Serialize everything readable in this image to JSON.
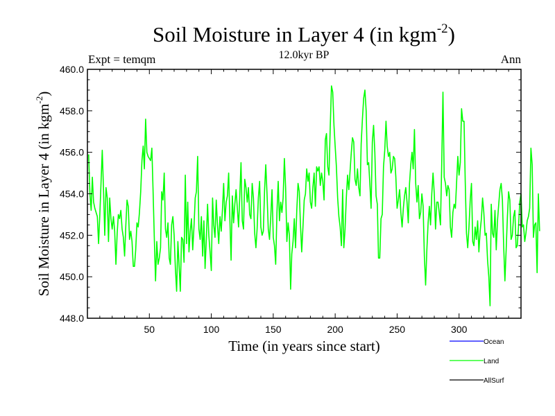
{
  "header": {
    "title_main": "Soil Moisture in Layer 4 (in kgm",
    "title_exponent": "-2",
    "title_close": ")",
    "subtitle": "12.0kyr BP",
    "left_label": "Expt = temqm",
    "right_label": "Ann"
  },
  "chart_data": {
    "type": "line",
    "title": "Soil Moisture in Layer 4 (in kgm-2)",
    "subtitle": "12.0kyr BP",
    "xlabel": "Time (in years since start)",
    "ylabel_main": "Soil Moisture in Layer 4 (in kgm",
    "ylabel_exponent": "-2",
    "ylabel_close": ")",
    "xlim": [
      0,
      350
    ],
    "ylim": [
      448.0,
      460.0
    ],
    "xticks": [
      50,
      100,
      150,
      200,
      250,
      300
    ],
    "xtick_labels": [
      "50",
      "100",
      "150",
      "200",
      "250",
      "300"
    ],
    "yticks": [
      448.0,
      450.0,
      452.0,
      454.0,
      456.0,
      458.0,
      460.0
    ],
    "ytick_labels": [
      "448.0",
      "450.0",
      "452.0",
      "454.0",
      "456.0",
      "458.0",
      "460.0"
    ],
    "legend": [
      {
        "name": "Ocean",
        "color": "#0000ff"
      },
      {
        "name": "Land",
        "color": "#00ff00"
      },
      {
        "name": "AllSurf",
        "color": "#000000"
      }
    ],
    "series": [
      {
        "name": "Land",
        "color": "#00ff00",
        "x_start": 1,
        "x_step": 1,
        "values": [
          455.9,
          454.0,
          453.2,
          454.8,
          453.6,
          453.3,
          453.1,
          452.9,
          451.6,
          453.0,
          454.5,
          456.1,
          454.2,
          452.0,
          454.3,
          453.8,
          451.7,
          453.8,
          452.8,
          452.3,
          452.9,
          452.2,
          450.6,
          452.1,
          453.0,
          452.8,
          453.2,
          452.3,
          451.9,
          451.0,
          452.5,
          453.7,
          453.4,
          451.8,
          452.2,
          451.7,
          450.5,
          450.5,
          451.3,
          452.6,
          452.4,
          453.1,
          454.1,
          455.6,
          456.3,
          455.2,
          457.6,
          456.0,
          455.8,
          455.7,
          455.6,
          456.2,
          454.2,
          451.9,
          449.8,
          451.7,
          450.6,
          450.9,
          451.4,
          454.1,
          453.7,
          455.0,
          452.3,
          451.9,
          452.6,
          450.9,
          450.6,
          452.5,
          452.9,
          452.0,
          450.4,
          449.3,
          451.7,
          450.6,
          449.3,
          451.9,
          451.8,
          450.7,
          454.9,
          451.6,
          453.6,
          451.2,
          452.2,
          452.8,
          451.3,
          452.4,
          453.8,
          454.1,
          455.8,
          452.3,
          451.8,
          452.9,
          451.0,
          452.7,
          450.4,
          451.8,
          453.5,
          452.0,
          451.2,
          450.3,
          453.8,
          452.5,
          451.9,
          453.7,
          452.5,
          451.6,
          452.9,
          452.2,
          453.2,
          454.5,
          452.7,
          453.6,
          453.9,
          455.0,
          452.7,
          450.8,
          453.9,
          452.6,
          453.5,
          454.2,
          453.3,
          452.4,
          453.9,
          455.5,
          452.7,
          452.3,
          454.7,
          454.3,
          453.6,
          454.3,
          453.0,
          452.8,
          454.5,
          453.8,
          452.1,
          451.4,
          452.3,
          453.8,
          454.6,
          452.4,
          452.0,
          452.2,
          454.2,
          455.4,
          454.0,
          452.3,
          451.8,
          452.9,
          454.2,
          451.9,
          451.5,
          450.6,
          453.1,
          454.6,
          452.7,
          453.6,
          453.1,
          453.8,
          455.7,
          454.3,
          451.7,
          452.6,
          452.0,
          449.4,
          451.1,
          451.7,
          452.8,
          451.4,
          453.2,
          454.5,
          454.1,
          452.5,
          451.2,
          452.4,
          453.7,
          454.0,
          455.2,
          454.6,
          455.0,
          453.6,
          453.3,
          454.3,
          455.0,
          453.4,
          455.3,
          455.1,
          455.3,
          454.4,
          455.0,
          454.6,
          453.7,
          456.6,
          456.9,
          455.3,
          454.9,
          457.2,
          459.2,
          458.9,
          457.3,
          456.3,
          455.3,
          453.8,
          452.9,
          452.4,
          451.5,
          454.2,
          451.4,
          452.3,
          453.8,
          454.9,
          454.2,
          455.1,
          456.0,
          456.7,
          456.5,
          454.7,
          454.4,
          455.2,
          454.3,
          453.9,
          456.4,
          457.6,
          458.6,
          459.0,
          458.0,
          455.4,
          455.5,
          454.5,
          453.3,
          456.5,
          457.3,
          456.0,
          453.9,
          453.5,
          450.9,
          450.9,
          452.8,
          453.0,
          455.3,
          456.1,
          457.5,
          456.3,
          455.8,
          456.0,
          455.0,
          455.2,
          455.8,
          455.7,
          454.8,
          453.3,
          453.7,
          454.2,
          453.1,
          452.4,
          453.3,
          453.9,
          454.3,
          453.6,
          452.6,
          454.5,
          455.4,
          456.0,
          455.2,
          457.1,
          454.5,
          453.6,
          454.4,
          452.8,
          453.1,
          454.0,
          453.4,
          451.0,
          449.6,
          451.3,
          452.6,
          453.4,
          452.5,
          454.0,
          455.0,
          454.0,
          452.3,
          453.6,
          453.6,
          453.1,
          452.5,
          455.4,
          458.9,
          454.8,
          454.5,
          453.9,
          454.4,
          454.2,
          452.4,
          451.9,
          453.1,
          453.5,
          453.3,
          454.5,
          455.8,
          454.9,
          455.5,
          458.1,
          457.5,
          457.5,
          454.6,
          452.1,
          451.4,
          452.4,
          453.7,
          454.5,
          451.7,
          451.5,
          452.4,
          451.8,
          452.7,
          451.2,
          452.2,
          452.8,
          453.8,
          453.1,
          452.0,
          452.1,
          450.8,
          450.0,
          448.6,
          453.5,
          452.1,
          451.9,
          453.2,
          451.3,
          452.7,
          453.5,
          454.2,
          454.5,
          453.7,
          451.5,
          449.8,
          451.3,
          452.9,
          454.1,
          453.7,
          451.8,
          452.0,
          452.9,
          453.2,
          451.4,
          451.5,
          452.4,
          453.6,
          454.0,
          452.4,
          452.5,
          451.7,
          452.1,
          452.7,
          452.9,
          453.3,
          456.2,
          455.4,
          451.9,
          452.5,
          452.6,
          450.2,
          454.0,
          452.2
        ]
      }
    ]
  }
}
